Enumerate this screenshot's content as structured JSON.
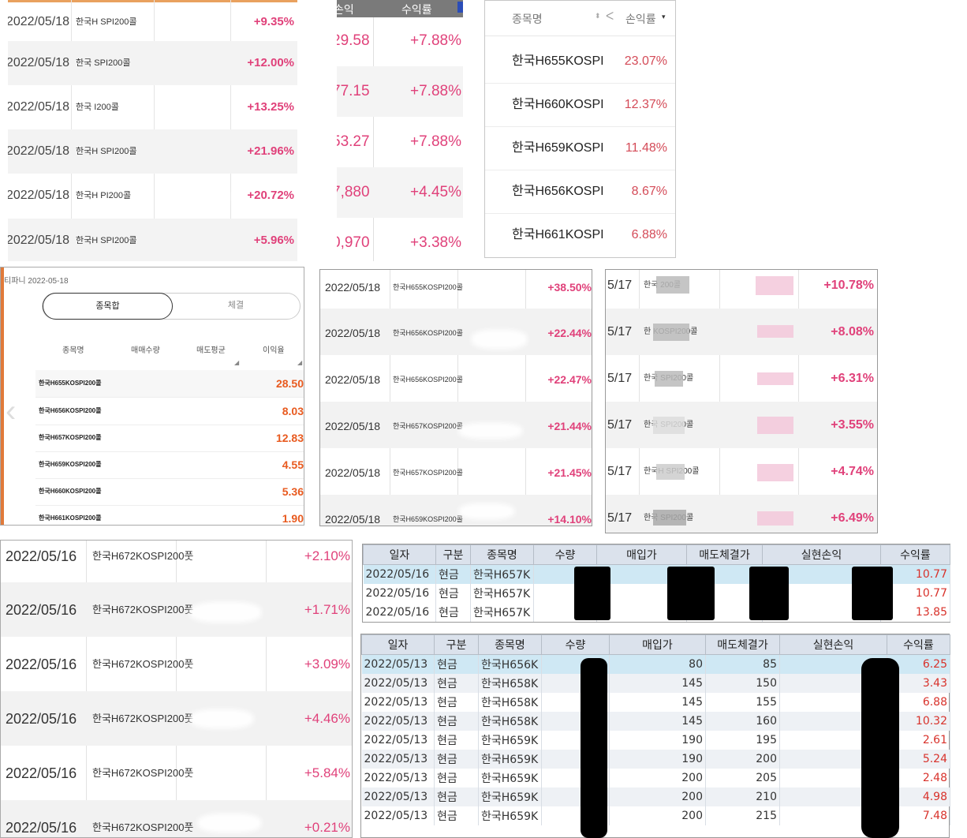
{
  "panel_top_left": {
    "rows": [
      {
        "date": "2022/05/18",
        "name": "한국H     SPI200콜",
        "rate": "+9.35%"
      },
      {
        "date": "2022/05/18",
        "name": "한국     SPI200콜",
        "rate": "+12.00%"
      },
      {
        "date": "2022/05/18",
        "name": "한국      I200콜",
        "rate": "+13.25%"
      },
      {
        "date": "2022/05/18",
        "name": "한국H    SPI200콜",
        "rate": "+21.96%"
      },
      {
        "date": "2022/05/18",
        "name": "한국H     PI200콜",
        "rate": "+20.72%"
      },
      {
        "date": "2022/05/18",
        "name": "한국H     SPI200콜",
        "rate": "+5.96%"
      }
    ]
  },
  "panel_top_mid": {
    "header": {
      "pnl": "손익",
      "rate": "수익률"
    },
    "rows": [
      {
        "pnl": "29.58",
        "rate": "+7.88%"
      },
      {
        "pnl": "77.15",
        "rate": "+7.88%"
      },
      {
        "pnl": "53.27",
        "rate": "+7.88%"
      },
      {
        "pnl": "7,880",
        "rate": "+4.45%"
      },
      {
        "pnl": "0,970",
        "rate": "+3.38%"
      }
    ]
  },
  "panel_top_right": {
    "header": {
      "name": "종목명",
      "rate": "손익률"
    },
    "rows": [
      {
        "name": "한국H655KOSPI",
        "rate": "23.07%"
      },
      {
        "name": "한국H660KOSPI",
        "rate": "12.37%"
      },
      {
        "name": "한국H659KOSPI",
        "rate": "11.48%"
      },
      {
        "name": "한국H656KOSPI",
        "rate": "8.67%"
      },
      {
        "name": "한국H661KOSPI",
        "rate": "6.88%"
      }
    ]
  },
  "panel_mid_left": {
    "title": "티파니 2022-05-18",
    "tabs": [
      "종목합",
      "체결"
    ],
    "columns": [
      "종목명",
      "매매수량",
      "매도평균",
      "이익율"
    ],
    "rows": [
      {
        "name": "한국H655KOSPI200콜",
        "value": "28.50"
      },
      {
        "name": "한국H656KOSPI200콜",
        "value": "8.03"
      },
      {
        "name": "한국H657KOSPI200콜",
        "value": "12.83"
      },
      {
        "name": "한국H659KOSPI200콜",
        "value": "4.55"
      },
      {
        "name": "한국H660KOSPI200콜",
        "value": "5.36"
      },
      {
        "name": "한국H661KOSPI200콜",
        "value": "1.90"
      }
    ]
  },
  "panel_mid_center": {
    "rows": [
      {
        "date": "2022/05/18",
        "name": "한국H655KOSPI200콜",
        "rate": "+38.50%"
      },
      {
        "date": "2022/05/18",
        "name": "한국H656KOSPI200콜",
        "rate": "+22.44%"
      },
      {
        "date": "2022/05/18",
        "name": "한국H656KOSPI200콜",
        "rate": "+22.47%"
      },
      {
        "date": "2022/05/18",
        "name": "한국H657KOSPI200콜",
        "rate": "+21.44%"
      },
      {
        "date": "2022/05/18",
        "name": "한국H657KOSPI200콜",
        "rate": "+21.45%"
      },
      {
        "date": "2022/05/18",
        "name": "한국H659KOSPI200콜",
        "rate": "+14.10%"
      }
    ]
  },
  "panel_mid_right": {
    "rows": [
      {
        "date": "5/17",
        "name": "한국     200콜",
        "rate": "+10.78%"
      },
      {
        "date": "5/17",
        "name": "한      KOSPI200콜",
        "rate": "+8.08%"
      },
      {
        "date": "5/17",
        "name": "한국      SPI200콜",
        "rate": "+6.31%"
      },
      {
        "date": "5/17",
        "name": "한국     SPI200콜",
        "rate": "+3.55%"
      },
      {
        "date": "5/17",
        "name": "한국H     SPI200콜",
        "rate": "+4.74%"
      },
      {
        "date": "5/17",
        "name": "한국     SPI200콜",
        "rate": "+6.49%"
      }
    ]
  },
  "panel_bottom_left": {
    "rows": [
      {
        "date": "2022/05/16",
        "name": "한국H672KOSPI200풋",
        "rate": "+2.10%"
      },
      {
        "date": "2022/05/16",
        "name": "한국H672KOSPI200풋",
        "rate": "+1.71%"
      },
      {
        "date": "2022/05/16",
        "name": "한국H672KOSPI200풋",
        "rate": "+3.09%"
      },
      {
        "date": "2022/05/16",
        "name": "한국H672KOSPI200풋",
        "rate": "+4.46%"
      },
      {
        "date": "2022/05/16",
        "name": "한국H672KOSPI200풋",
        "rate": "+5.84%"
      },
      {
        "date": "2022/05/16",
        "name": "한국H672KOSPI200풋",
        "rate": "+0.21%"
      }
    ]
  },
  "grid_small": {
    "columns": [
      "일자",
      "구분",
      "종목명",
      "수량",
      "매입가",
      "매도체결가",
      "실현손익",
      "수익률"
    ],
    "rows": [
      {
        "date": "2022/05/16",
        "type": "현금",
        "name": "한국H657K",
        "rate": "10.77"
      },
      {
        "date": "2022/05/16",
        "type": "현금",
        "name": "한국H657K",
        "rate": "10.77"
      },
      {
        "date": "2022/05/16",
        "type": "현금",
        "name": "한국H657K",
        "rate": "13.85"
      }
    ]
  },
  "grid_large": {
    "columns": [
      "일자",
      "구분",
      "종목명",
      "수량",
      "매입가",
      "매도체결가",
      "실현손익",
      "수익률"
    ],
    "rows": [
      {
        "date": "2022/05/13",
        "type": "현금",
        "name": "한국H656K",
        "buy": "80",
        "sell": "85",
        "rate": "6.25"
      },
      {
        "date": "2022/05/13",
        "type": "현금",
        "name": "한국H658K",
        "buy": "145",
        "sell": "150",
        "rate": "3.43"
      },
      {
        "date": "2022/05/13",
        "type": "현금",
        "name": "한국H658K",
        "buy": "145",
        "sell": "155",
        "rate": "6.88"
      },
      {
        "date": "2022/05/13",
        "type": "현금",
        "name": "한국H658K",
        "buy": "145",
        "sell": "160",
        "rate": "10.32"
      },
      {
        "date": "2022/05/13",
        "type": "현금",
        "name": "한국H659K",
        "buy": "190",
        "sell": "195",
        "rate": "2.61"
      },
      {
        "date": "2022/05/13",
        "type": "현금",
        "name": "한국H659K",
        "buy": "190",
        "sell": "200",
        "rate": "5.24"
      },
      {
        "date": "2022/05/13",
        "type": "현금",
        "name": "한국H659K",
        "buy": "200",
        "sell": "205",
        "rate": "2.48"
      },
      {
        "date": "2022/05/13",
        "type": "현금",
        "name": "한국H659K",
        "buy": "200",
        "sell": "210",
        "rate": "4.98"
      },
      {
        "date": "2022/05/13",
        "type": "현금",
        "name": "한국H659K",
        "buy": "200",
        "sell": "215",
        "rate": "7.48"
      }
    ]
  },
  "colors": {
    "profit_pink": "#e0417a",
    "profit_red": "#d8322b",
    "accent_orange": "#e85a1f",
    "grid_header": "#dbe2ec",
    "grid_selected": "#cfe8f4"
  }
}
